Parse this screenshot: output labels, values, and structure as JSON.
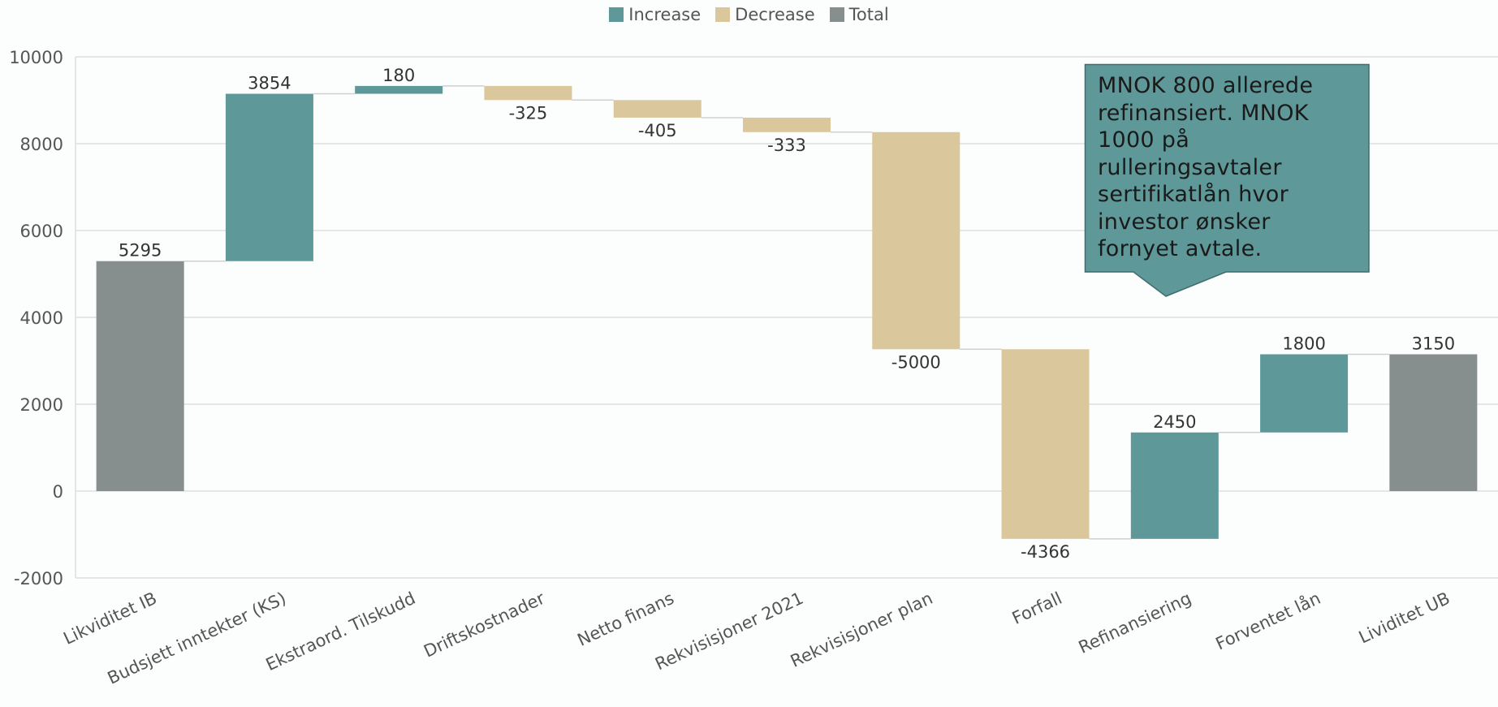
{
  "chart_data": {
    "type": "waterfall",
    "legend": [
      {
        "label": "Increase",
        "color": "#5e9898"
      },
      {
        "label": "Decrease",
        "color": "#dac79c"
      },
      {
        "label": "Total",
        "color": "#878e8e"
      }
    ],
    "ylim": [
      -2000,
      10000
    ],
    "yticks": [
      -2000,
      0,
      2000,
      4000,
      6000,
      8000,
      10000
    ],
    "grid": true,
    "legend_position": "top-center",
    "bars": [
      {
        "category": "Likviditet IB",
        "value": 5295,
        "kind": "total",
        "label": "5295"
      },
      {
        "category": "Budsjett inntekter (KS)",
        "value": 3854,
        "kind": "increase",
        "label": "3854"
      },
      {
        "category": "Ekstraord. Tilskudd",
        "value": 180,
        "kind": "increase",
        "label": "180"
      },
      {
        "category": "Driftskostnader",
        "value": -325,
        "kind": "decrease",
        "label": "-325"
      },
      {
        "category": "Netto finans",
        "value": -405,
        "kind": "decrease",
        "label": "-405"
      },
      {
        "category": "Rekvisisjoner 2021",
        "value": -333,
        "kind": "decrease",
        "label": "-333"
      },
      {
        "category": "Rekvisisjoner plan",
        "value": -5000,
        "kind": "decrease",
        "label": "-5000"
      },
      {
        "category": "Forfall",
        "value": -4366,
        "kind": "decrease",
        "label": "-4366"
      },
      {
        "category": "Refinansiering",
        "value": 2450,
        "kind": "increase",
        "label": "2450"
      },
      {
        "category": "Forventet lån",
        "value": 1800,
        "kind": "increase",
        "label": "1800"
      },
      {
        "category": "Lividitet UB",
        "value": 3150,
        "kind": "total",
        "label": "3150"
      }
    ],
    "annotation": "MNOK 800 allerede refinansiert. MNOK 1000 på rulleringsavtaler sertifikatlån hvor investor ønsker fornyet avtale."
  }
}
